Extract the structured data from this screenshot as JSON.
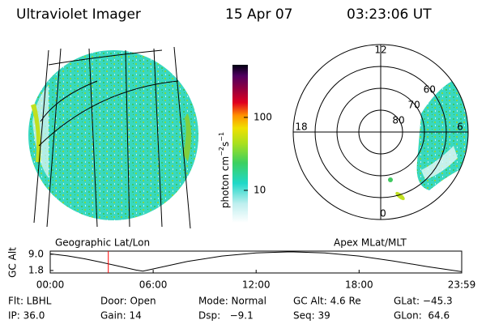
{
  "header": {
    "title": "Ultraviolet Imager",
    "date": "15 Apr 07",
    "time": "03:23:06 UT"
  },
  "colorbar": {
    "label": [
      "photon cm",
      "−2",
      "s",
      "−1"
    ],
    "log": true,
    "lim": [
      3.6,
      525
    ],
    "ticks": [
      10,
      100
    ]
  },
  "left_panel": {
    "label": "Geographic Lat/Lon"
  },
  "polar_panel": {
    "label": "Apex MLat/MLT",
    "lat_lim": [
      90,
      50
    ],
    "lat_ticks": [
      80,
      70,
      60
    ],
    "mlt_ticks": [
      12,
      18,
      6,
      0
    ]
  },
  "chart_data": {
    "type": "line",
    "ylabel": "GC Alt",
    "x": [
      0,
      1,
      2,
      3,
      4,
      5,
      5.4,
      6,
      8,
      10,
      12,
      14,
      16,
      18,
      20,
      22,
      23.98
    ],
    "series": [
      {
        "color": "#000000",
        "values": [
          9.2,
          8.3,
          7.0,
          5.4,
          3.7,
          2.0,
          1.5,
          2.5,
          5.8,
          8.2,
          9.6,
          10.1,
          9.6,
          8.2,
          6.0,
          3.5,
          1.3
        ]
      }
    ],
    "marker_x": 3.385,
    "marker_color": "#ff0000",
    "xlim": [
      0,
      23.98
    ],
    "ylim": [
      0.7,
      10.4
    ],
    "xticks": [
      {
        "value": 0,
        "label": "00:00"
      },
      {
        "value": 6,
        "label": "06:00"
      },
      {
        "value": 12,
        "label": "12:00"
      },
      {
        "value": 18,
        "label": "18:00"
      },
      {
        "value": 23.98,
        "label": "23:59"
      }
    ],
    "yticks": [
      1.8,
      {
        "value": 9,
        "label": "9.0"
      }
    ]
  },
  "status": [
    [
      "Flt: LBHL",
      "Door: Open",
      "Mode: Normal",
      "GC Alt: 4.6 Re",
      "GLat: −45.3"
    ],
    [
      "IP: 36.0",
      "Gain: 14",
      "Dsp:   −9.1",
      "Seq: 39",
      "GLon:  64.6"
    ]
  ]
}
